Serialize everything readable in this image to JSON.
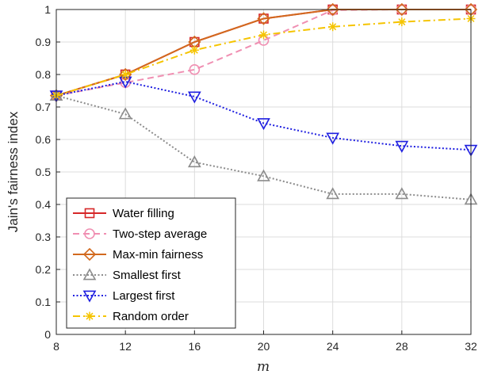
{
  "chart_data": {
    "type": "line",
    "title": "",
    "xlabel": "m",
    "ylabel": "Jain's fairness index",
    "x": [
      8,
      12,
      16,
      20,
      24,
      28,
      32
    ],
    "xlim": [
      8,
      32
    ],
    "ylim": [
      0,
      1
    ],
    "xticks": [
      "8",
      "12",
      "16",
      "20",
      "24",
      "28",
      "32"
    ],
    "yticks": [
      "0",
      "0.1",
      "0.2",
      "0.3",
      "0.4",
      "0.5",
      "0.6",
      "0.7",
      "0.8",
      "0.9",
      "1"
    ],
    "grid": true,
    "legend_position": "bottom-left",
    "series": [
      {
        "name": "Water filling",
        "values": [
          0.735,
          0.8,
          0.9,
          0.972,
          1.0,
          1.0,
          1.0
        ],
        "color": "#d62728",
        "dash": "solid",
        "marker": "square"
      },
      {
        "name": "Two-step average",
        "values": [
          0.735,
          0.775,
          0.815,
          0.905,
          0.998,
          1.0,
          1.0
        ],
        "color": "#f08fb2",
        "dash": "dashed",
        "marker": "circle"
      },
      {
        "name": "Max-min fairness",
        "values": [
          0.735,
          0.8,
          0.9,
          0.972,
          1.0,
          1.0,
          1.0
        ],
        "color": "#d2691e",
        "dash": "solid",
        "marker": "diamond"
      },
      {
        "name": "Smallest first",
        "values": [
          0.735,
          0.678,
          0.53,
          0.487,
          0.432,
          0.432,
          0.415
        ],
        "color": "#8c8c8c",
        "dash": "dotted",
        "marker": "triangle-up"
      },
      {
        "name": "Largest first",
        "values": [
          0.735,
          0.778,
          0.732,
          0.65,
          0.605,
          0.58,
          0.568
        ],
        "color": "#1f1fe0",
        "dash": "dotted",
        "marker": "triangle-down"
      },
      {
        "name": "Random order",
        "values": [
          0.735,
          0.8,
          0.875,
          0.922,
          0.947,
          0.962,
          0.972
        ],
        "color": "#f5c400",
        "dash": "dashdot",
        "marker": "asterisk"
      }
    ]
  }
}
